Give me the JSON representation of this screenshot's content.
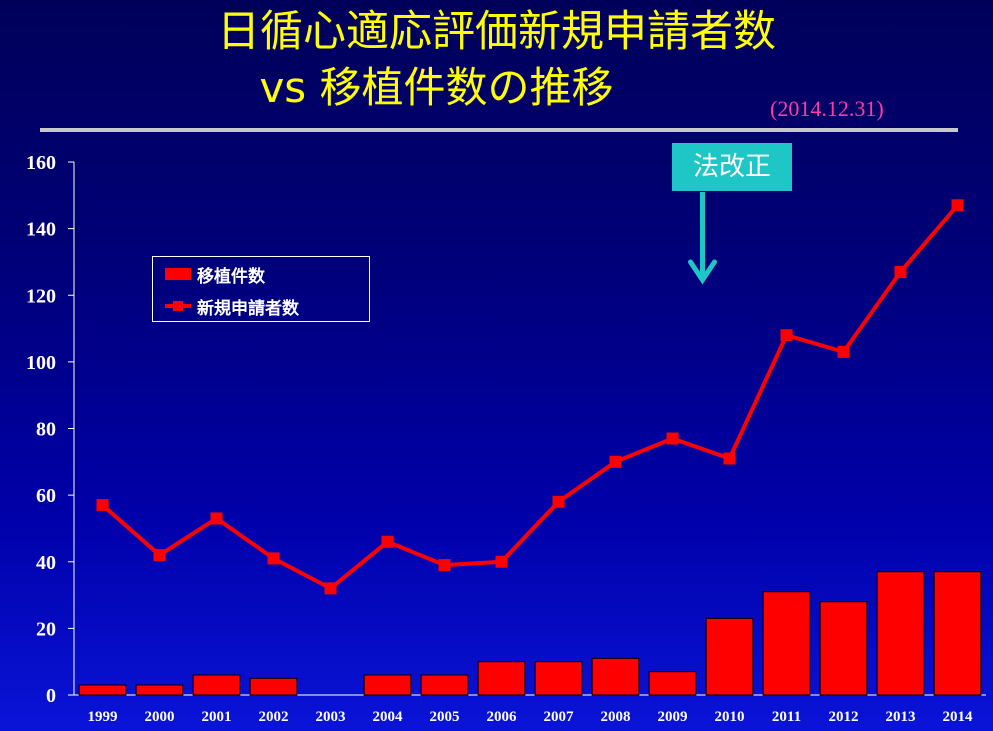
{
  "title_line1": "日循心適応評価新規申請者数",
  "title_line2": "vs 移植件数の推移",
  "date_note": "(2014.12.31)",
  "annotation": "法改正",
  "colors": {
    "bar": "#ff0000",
    "line": "#ff0000",
    "title": "#ffff00",
    "annotation_bg": "#1fc6c6",
    "date_note": "#ff3ca0"
  },
  "chart_data": {
    "type": "bar",
    "categories": [
      "1999",
      "2000",
      "2001",
      "2002",
      "2003",
      "2004",
      "2005",
      "2006",
      "2007",
      "2008",
      "2009",
      "2010",
      "2011",
      "2012",
      "2013",
      "2014"
    ],
    "series": [
      {
        "name": "移植件数",
        "type": "bar",
        "values": [
          3,
          3,
          6,
          5,
          0,
          6,
          6,
          10,
          10,
          11,
          7,
          23,
          31,
          28,
          37,
          37
        ]
      },
      {
        "name": "新規申請者数",
        "type": "line",
        "values": [
          57,
          42,
          53,
          41,
          32,
          46,
          39,
          40,
          58,
          70,
          77,
          71,
          108,
          103,
          127,
          147
        ]
      }
    ],
    "ylim": [
      0,
      160
    ],
    "yticks": [
      0,
      20,
      40,
      60,
      80,
      100,
      120,
      140,
      160
    ],
    "grid": false,
    "legend_position": "upper-left",
    "annotation": {
      "text": "法改正",
      "category": "2010",
      "marker": "down-arrow"
    }
  }
}
